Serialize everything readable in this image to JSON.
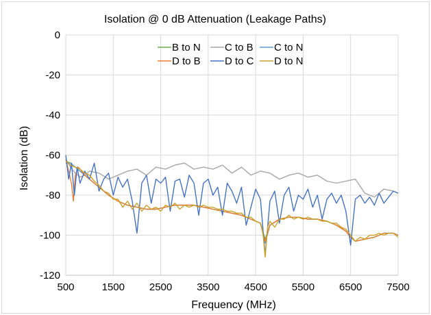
{
  "chart_data": {
    "type": "line",
    "title": "Isolation @ 0 dB Attenuation (Leakage Paths)",
    "xlabel": "Frequency (MHz)",
    "ylabel": "Isolation (dB)",
    "xlim": [
      500,
      7500
    ],
    "ylim": [
      -120,
      0
    ],
    "xticks": [
      500,
      1500,
      2500,
      3500,
      4500,
      5500,
      6500,
      7500
    ],
    "yticks": [
      0,
      -20,
      -40,
      -60,
      -80,
      -100,
      -120
    ],
    "grid": true,
    "legend_position": "top-center",
    "series": [
      {
        "name": "B to N",
        "color": "#70ad47",
        "x": [
          500,
          600,
          700,
          800,
          900,
          1000,
          1200,
          1400,
          1600,
          1800,
          2000,
          2200,
          2400,
          2600,
          2800,
          3000,
          3200,
          3400,
          3600,
          3800,
          4000,
          4200,
          4400,
          4600,
          4700,
          4800,
          5000,
          5200,
          5400,
          5600,
          5800,
          6000,
          6200,
          6400,
          6500,
          6600,
          6800,
          7000,
          7200,
          7400,
          7500
        ],
        "y": [
          -63,
          -64,
          -66,
          -68,
          -70,
          -72,
          -76,
          -80,
          -83,
          -85,
          -86,
          -87,
          -87,
          -86,
          -85,
          -85,
          -85,
          -86,
          -87,
          -88,
          -89,
          -90,
          -92,
          -94,
          -102,
          -95,
          -92,
          -91,
          -91,
          -92,
          -92,
          -93,
          -95,
          -98,
          -101,
          -103,
          -102,
          -101,
          -99,
          -99,
          -100
        ]
      },
      {
        "name": "C to B",
        "color": "#a5a5a5",
        "x": [
          500,
          600,
          700,
          800,
          900,
          1000,
          1200,
          1400,
          1600,
          1800,
          2000,
          2200,
          2400,
          2600,
          2800,
          3000,
          3200,
          3400,
          3600,
          3800,
          4000,
          4200,
          4400,
          4600,
          4800,
          5000,
          5200,
          5400,
          5600,
          5800,
          6000,
          6200,
          6400,
          6600,
          6800,
          7000,
          7200,
          7400,
          7500
        ],
        "y": [
          -62,
          -66,
          -69,
          -71,
          -70,
          -68,
          -69,
          -72,
          -70,
          -68,
          -67,
          -70,
          -66,
          -67,
          -65,
          -64,
          -67,
          -66,
          -67,
          -65,
          -69,
          -66,
          -70,
          -68,
          -69,
          -72,
          -70,
          -69,
          -71,
          -70,
          -73,
          -74,
          -73,
          -72,
          -79,
          -81,
          -77,
          -78,
          -79
        ]
      },
      {
        "name": "C to N",
        "color": "#5b9bd5",
        "x": [
          500,
          600,
          700,
          800,
          900,
          1000,
          1200,
          1400,
          1600,
          1800,
          2000,
          2200,
          2400,
          2600,
          2800,
          3000,
          3200,
          3400,
          3600,
          3800,
          4000,
          4200,
          4400,
          4600,
          4700,
          4800,
          5000,
          5200,
          5400,
          5600,
          5800,
          6000,
          6200,
          6400,
          6500,
          6600,
          6800,
          7000,
          7200,
          7400,
          7500
        ],
        "y": [
          -64,
          -64,
          -66,
          -68,
          -70,
          -72,
          -76,
          -80,
          -83,
          -85,
          -86,
          -87,
          -87,
          -86,
          -85,
          -85,
          -85,
          -86,
          -87,
          -88,
          -89,
          -90,
          -92,
          -94,
          -104,
          -95,
          -92,
          -91,
          -91,
          -92,
          -92,
          -93,
          -95,
          -98,
          -101,
          -103,
          -102,
          -101,
          -99,
          -99,
          -100
        ]
      },
      {
        "name": "D to B",
        "color": "#ed7d31",
        "x": [
          500,
          560,
          620,
          660,
          700,
          760,
          800,
          900,
          1000,
          1200,
          1400,
          1600,
          1800,
          2000,
          2200,
          2400,
          2600,
          2800,
          3000,
          3200,
          3400,
          3600,
          3800,
          4000,
          4200,
          4400,
          4600,
          4700,
          4800,
          5000,
          5200,
          5400,
          5600,
          5800,
          6000,
          6200,
          6400,
          6500,
          6600,
          6800,
          7000,
          7200,
          7400,
          7500
        ],
        "y": [
          -62,
          -68,
          -74,
          -83,
          -70,
          -66,
          -67,
          -70,
          -72,
          -76,
          -80,
          -83,
          -85,
          -86,
          -87,
          -87,
          -86,
          -85,
          -85,
          -85,
          -86,
          -87,
          -88,
          -89,
          -90,
          -92,
          -94,
          -103,
          -95,
          -92,
          -91,
          -91,
          -92,
          -92,
          -93,
          -95,
          -98,
          -101,
          -103,
          -102,
          -101,
          -99,
          -99,
          -100
        ]
      },
      {
        "name": "D to C",
        "color": "#4472c4",
        "x": [
          500,
          560,
          620,
          680,
          740,
          800,
          900,
          1000,
          1100,
          1200,
          1300,
          1400,
          1500,
          1600,
          1700,
          1800,
          1900,
          2000,
          2100,
          2200,
          2300,
          2400,
          2500,
          2600,
          2700,
          2800,
          2900,
          3000,
          3100,
          3200,
          3300,
          3400,
          3500,
          3600,
          3700,
          3800,
          3900,
          4000,
          4100,
          4200,
          4300,
          4400,
          4500,
          4600,
          4700,
          4800,
          4900,
          5000,
          5100,
          5200,
          5300,
          5400,
          5500,
          5600,
          5700,
          5800,
          5900,
          6000,
          6100,
          6200,
          6300,
          6400,
          6500,
          6600,
          6700,
          6800,
          6900,
          7000,
          7100,
          7200,
          7300,
          7400,
          7500
        ],
        "y": [
          -60,
          -72,
          -64,
          -80,
          -66,
          -74,
          -68,
          -72,
          -64,
          -78,
          -72,
          -69,
          -80,
          -71,
          -76,
          -72,
          -83,
          -99,
          -74,
          -70,
          -84,
          -72,
          -74,
          -71,
          -88,
          -73,
          -72,
          -81,
          -70,
          -74,
          -90,
          -74,
          -72,
          -80,
          -76,
          -90,
          -74,
          -78,
          -84,
          -76,
          -95,
          -86,
          -77,
          -82,
          -110,
          -83,
          -78,
          -94,
          -80,
          -76,
          -88,
          -80,
          -82,
          -77,
          -86,
          -80,
          -92,
          -82,
          -79,
          -84,
          -80,
          -88,
          -105,
          -82,
          -80,
          -84,
          -81,
          -85,
          -79,
          -84,
          -81,
          -78,
          -79
        ]
      },
      {
        "name": "D to N",
        "color": "#c9a227",
        "x": [
          500,
          600,
          700,
          800,
          900,
          1000,
          1100,
          1200,
          1300,
          1400,
          1500,
          1600,
          1700,
          1800,
          1900,
          2000,
          2100,
          2200,
          2300,
          2400,
          2500,
          2600,
          2700,
          2800,
          2900,
          3000,
          3100,
          3200,
          3300,
          3400,
          3500,
          3600,
          3700,
          3800,
          3900,
          4000,
          4100,
          4200,
          4300,
          4400,
          4500,
          4600,
          4650,
          4700,
          4750,
          4800,
          4900,
          5000,
          5100,
          5200,
          5300,
          5400,
          5500,
          5600,
          5700,
          5800,
          5900,
          6000,
          6100,
          6200,
          6300,
          6400,
          6500,
          6600,
          6700,
          6800,
          6900,
          7000,
          7100,
          7200,
          7300,
          7400,
          7500
        ],
        "y": [
          -63,
          -65,
          -66,
          -67,
          -69,
          -70,
          -73,
          -75,
          -78,
          -79,
          -82,
          -82,
          -86,
          -83,
          -87,
          -84,
          -88,
          -85,
          -87,
          -86,
          -88,
          -85,
          -86,
          -84,
          -87,
          -85,
          -86,
          -85,
          -86,
          -85,
          -86,
          -86,
          -87,
          -87,
          -88,
          -88,
          -89,
          -89,
          -91,
          -91,
          -93,
          -94,
          -98,
          -111,
          -96,
          -93,
          -96,
          -92,
          -92,
          -90,
          -92,
          -91,
          -92,
          -91,
          -92,
          -92,
          -93,
          -93,
          -94,
          -94,
          -96,
          -97,
          -100,
          -103,
          -101,
          -102,
          -100,
          -100,
          -99,
          -100,
          -99,
          -99,
          -101
        ]
      }
    ]
  }
}
